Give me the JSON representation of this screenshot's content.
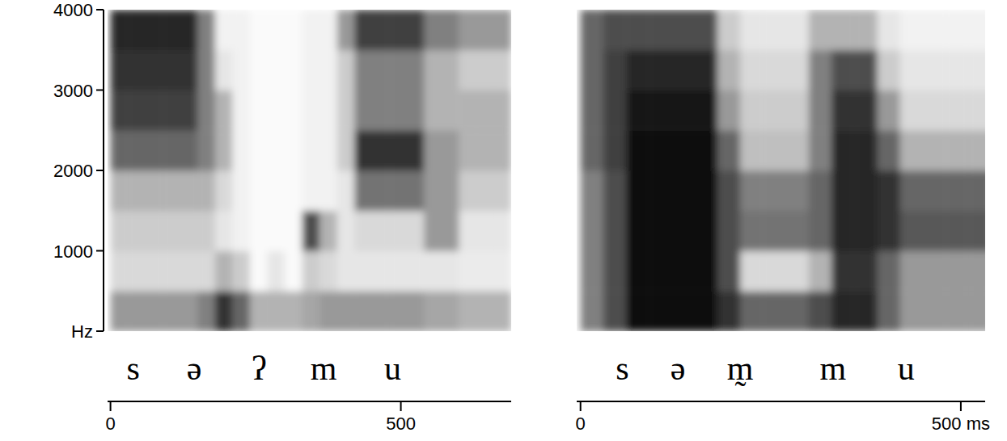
{
  "chart_data": [
    {
      "type": "heatmap",
      "xlim": [
        -5,
        690
      ],
      "ylim": [
        0,
        4000
      ],
      "xticks": [
        0,
        500
      ],
      "yticks": [
        {
          "value": 0,
          "label": "Hz"
        },
        1000,
        2000,
        3000,
        4000
      ],
      "zlim": [
        0,
        1
      ],
      "x_bins": [
        0,
        30,
        60,
        90,
        120,
        150,
        180,
        210,
        240,
        270,
        300,
        330,
        360,
        390,
        420,
        450,
        480,
        510,
        540,
        570,
        600,
        630,
        660,
        690
      ],
      "y_bins": [
        0,
        500,
        1000,
        1500,
        2000,
        2500,
        3000,
        3500,
        4000
      ],
      "cells": [
        [
          0.4,
          0.15,
          0.2,
          0.3,
          0.6,
          0.75,
          0.8,
          0.85
        ],
        [
          0.4,
          0.15,
          0.2,
          0.3,
          0.6,
          0.75,
          0.8,
          0.85
        ],
        [
          0.4,
          0.15,
          0.2,
          0.3,
          0.6,
          0.75,
          0.8,
          0.85
        ],
        [
          0.4,
          0.15,
          0.2,
          0.3,
          0.6,
          0.75,
          0.8,
          0.85
        ],
        [
          0.4,
          0.15,
          0.2,
          0.3,
          0.6,
          0.75,
          0.8,
          0.85
        ],
        [
          0.5,
          0.15,
          0.2,
          0.3,
          0.5,
          0.5,
          0.5,
          0.5
        ],
        [
          0.8,
          0.3,
          0.1,
          0.15,
          0.3,
          0.3,
          0.1,
          0.05
        ],
        [
          0.6,
          0.2,
          0.05,
          0.05,
          0.05,
          0.05,
          0.05,
          0.05
        ],
        [
          0.3,
          0.02,
          0.02,
          0.02,
          0.02,
          0.02,
          0.02,
          0.02
        ],
        [
          0.3,
          0.1,
          0.02,
          0.02,
          0.02,
          0.02,
          0.02,
          0.02
        ],
        [
          0.3,
          0.02,
          0.02,
          0.02,
          0.02,
          0.02,
          0.02,
          0.02
        ],
        [
          0.35,
          0.2,
          0.7,
          0.05,
          0.05,
          0.05,
          0.05,
          0.05
        ],
        [
          0.4,
          0.15,
          0.3,
          0.05,
          0.05,
          0.05,
          0.05,
          0.05
        ],
        [
          0.4,
          0.1,
          0.1,
          0.1,
          0.2,
          0.2,
          0.2,
          0.4
        ],
        [
          0.4,
          0.1,
          0.15,
          0.55,
          0.8,
          0.5,
          0.5,
          0.75
        ],
        [
          0.4,
          0.1,
          0.15,
          0.55,
          0.8,
          0.5,
          0.5,
          0.75
        ],
        [
          0.4,
          0.1,
          0.15,
          0.55,
          0.8,
          0.5,
          0.5,
          0.75
        ],
        [
          0.4,
          0.1,
          0.15,
          0.55,
          0.8,
          0.5,
          0.5,
          0.75
        ],
        [
          0.35,
          0.1,
          0.4,
          0.4,
          0.4,
          0.3,
          0.3,
          0.5
        ],
        [
          0.35,
          0.1,
          0.4,
          0.4,
          0.4,
          0.3,
          0.3,
          0.5
        ],
        [
          0.3,
          0.08,
          0.1,
          0.2,
          0.3,
          0.3,
          0.2,
          0.4
        ],
        [
          0.3,
          0.08,
          0.1,
          0.2,
          0.3,
          0.3,
          0.2,
          0.4
        ],
        [
          0.3,
          0.08,
          0.1,
          0.2,
          0.3,
          0.3,
          0.2,
          0.4
        ]
      ],
      "annotations": [
        {
          "text": "s",
          "x": 39
        },
        {
          "text": "ə",
          "x": 144
        },
        {
          "text": "ʔ",
          "x": 256
        },
        {
          "text": "m",
          "x": 367
        },
        {
          "text": "u",
          "x": 486
        }
      ]
    },
    {
      "type": "heatmap",
      "xlim": [
        -5,
        532
      ],
      "ylim": [
        0,
        4000
      ],
      "xticks": [
        0,
        {
          "value": 500,
          "label": "500 ms"
        }
      ],
      "tick_labels": "x",
      "zlim": [
        0,
        1
      ],
      "x_bins": [
        0,
        30,
        60,
        90,
        120,
        150,
        180,
        210,
        240,
        270,
        300,
        330,
        360,
        390,
        420,
        450,
        480,
        510,
        540
      ],
      "y_bins": [
        0,
        500,
        1000,
        1500,
        2000,
        2500,
        3000,
        3500,
        4000
      ],
      "cells": [
        [
          0.5,
          0.5,
          0.5,
          0.5,
          0.6,
          0.6,
          0.6,
          0.6
        ],
        [
          0.7,
          0.7,
          0.7,
          0.7,
          0.75,
          0.75,
          0.75,
          0.7
        ],
        [
          0.95,
          0.95,
          0.95,
          0.95,
          0.95,
          0.9,
          0.85,
          0.7
        ],
        [
          0.95,
          0.95,
          0.95,
          0.95,
          0.95,
          0.9,
          0.85,
          0.7
        ],
        [
          0.95,
          0.95,
          0.95,
          0.95,
          0.95,
          0.9,
          0.85,
          0.7
        ],
        [
          0.95,
          0.95,
          0.95,
          0.95,
          0.95,
          0.9,
          0.85,
          0.7
        ],
        [
          0.8,
          0.7,
          0.7,
          0.7,
          0.6,
          0.4,
          0.3,
          0.2
        ],
        [
          0.6,
          0.15,
          0.55,
          0.5,
          0.25,
          0.2,
          0.15,
          0.1
        ],
        [
          0.6,
          0.15,
          0.55,
          0.5,
          0.25,
          0.2,
          0.15,
          0.1
        ],
        [
          0.6,
          0.15,
          0.55,
          0.5,
          0.25,
          0.2,
          0.15,
          0.1
        ],
        [
          0.7,
          0.3,
          0.6,
          0.6,
          0.5,
          0.5,
          0.5,
          0.3
        ],
        [
          0.85,
          0.8,
          0.85,
          0.85,
          0.85,
          0.8,
          0.7,
          0.3
        ],
        [
          0.85,
          0.8,
          0.85,
          0.85,
          0.85,
          0.8,
          0.7,
          0.3
        ],
        [
          0.6,
          0.6,
          0.8,
          0.8,
          0.6,
          0.4,
          0.2,
          0.1
        ],
        [
          0.4,
          0.4,
          0.65,
          0.6,
          0.3,
          0.15,
          0.1,
          0.05
        ],
        [
          0.4,
          0.4,
          0.65,
          0.6,
          0.3,
          0.15,
          0.1,
          0.05
        ],
        [
          0.4,
          0.4,
          0.65,
          0.6,
          0.3,
          0.15,
          0.1,
          0.05
        ],
        [
          0.4,
          0.4,
          0.65,
          0.6,
          0.3,
          0.15,
          0.1,
          0.05
        ]
      ],
      "annotations": [
        {
          "text": "s",
          "x": 55
        },
        {
          "text": "ə",
          "x": 128
        },
        {
          "text": "m̰",
          "x": 210
        },
        {
          "text": "m",
          "x": 332
        },
        {
          "text": "u",
          "x": 428
        }
      ]
    }
  ]
}
